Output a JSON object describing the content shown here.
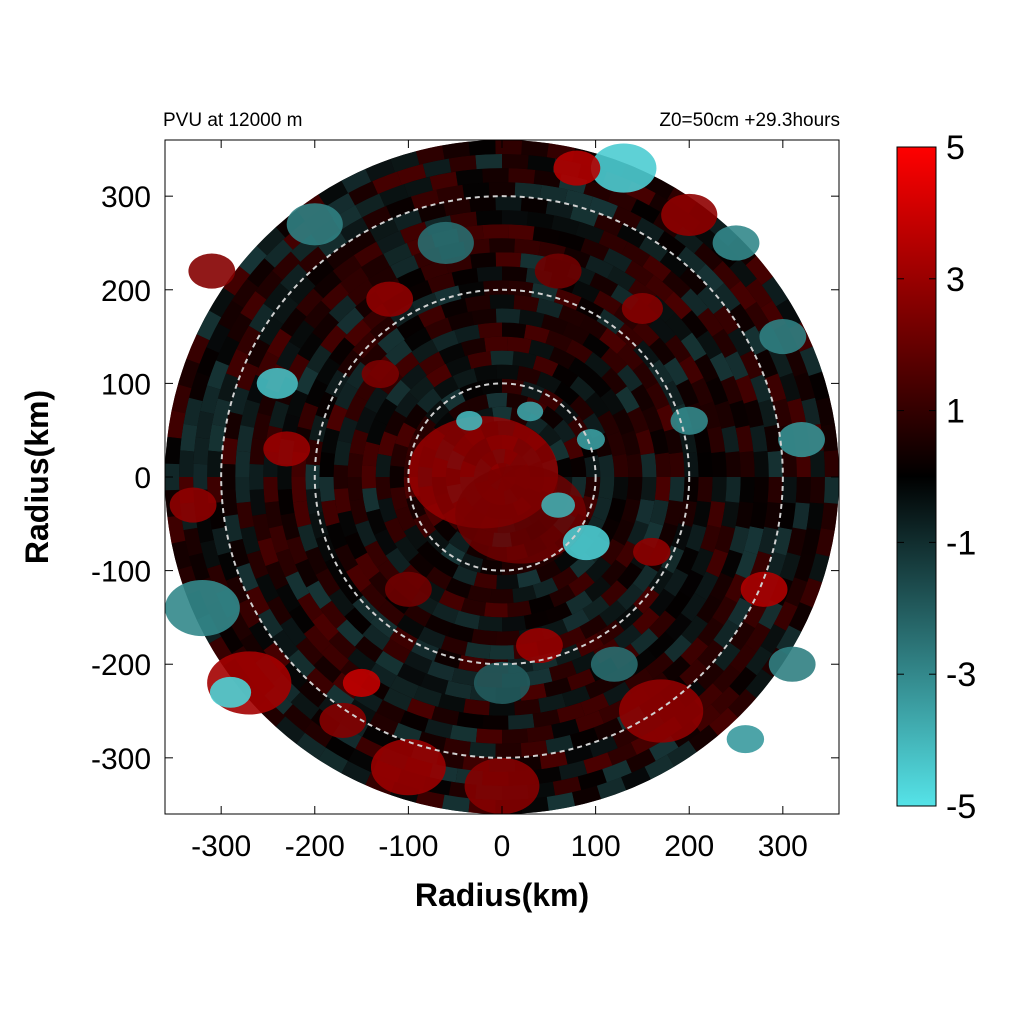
{
  "chart_data": {
    "type": "heatmap",
    "title_left": "PVU at 12000 m",
    "title_right": "Z0=50cm  +29.3hours",
    "xlabel": "Radius(km)",
    "ylabel": "Radius(km)",
    "xlim": [
      -360,
      360
    ],
    "ylim": [
      -360,
      360
    ],
    "xticks": [
      -300,
      -200,
      -100,
      0,
      100,
      200,
      300
    ],
    "yticks": [
      -300,
      -200,
      -100,
      0,
      100,
      200,
      300
    ],
    "xtick_labels": [
      "-300",
      "-200",
      "-100",
      "0",
      "100",
      "200",
      "300"
    ],
    "ytick_labels": [
      "300",
      "200",
      "100",
      "0",
      "-100",
      "-200",
      "-300"
    ],
    "domain_radius_km": 360,
    "reference_circles_km": [
      100,
      200,
      300
    ],
    "colorbar": {
      "min": -5,
      "max": 5,
      "tick_labels": [
        "5",
        "3",
        "1",
        "-1",
        "-3",
        "-5"
      ],
      "tick_values": [
        5,
        3,
        1,
        -1,
        -3,
        -5
      ],
      "colors": {
        "negative": "#55e3e8",
        "zero": "#000000",
        "positive": "#ff0000"
      }
    },
    "features": [
      {
        "type": "core",
        "cx": -20,
        "cy": 5,
        "r": 80,
        "value": 3.2
      },
      {
        "type": "core",
        "cx": 20,
        "cy": -40,
        "r": 70,
        "value": 2.4
      },
      {
        "type": "blob",
        "cx": 90,
        "cy": -70,
        "r": 25,
        "value": -4.5
      },
      {
        "type": "blob",
        "cx": 60,
        "cy": -30,
        "r": 18,
        "value": -3.8
      },
      {
        "type": "blob",
        "cx": 95,
        "cy": 40,
        "r": 15,
        "value": -3.5
      },
      {
        "type": "blob",
        "cx": -35,
        "cy": 60,
        "r": 14,
        "value": -4.0
      },
      {
        "type": "blob",
        "cx": 30,
        "cy": 70,
        "r": 14,
        "value": -3.6
      },
      {
        "type": "blob",
        "cx": 130,
        "cy": 330,
        "r": 35,
        "value": -4.5
      },
      {
        "type": "blob",
        "cx": 80,
        "cy": 330,
        "r": 25,
        "value": 3.5
      },
      {
        "type": "blob",
        "cx": 200,
        "cy": 280,
        "r": 30,
        "value": 2.8
      },
      {
        "type": "blob",
        "cx": 250,
        "cy": 250,
        "r": 25,
        "value": -3.0
      },
      {
        "type": "blob",
        "cx": -240,
        "cy": 100,
        "r": 22,
        "value": -4.2
      },
      {
        "type": "blob",
        "cx": -230,
        "cy": 30,
        "r": 25,
        "value": 3.0
      },
      {
        "type": "blob",
        "cx": -320,
        "cy": -140,
        "r": 40,
        "value": -3.0
      },
      {
        "type": "blob",
        "cx": -270,
        "cy": -220,
        "r": 45,
        "value": 3.2
      },
      {
        "type": "blob",
        "cx": -290,
        "cy": -230,
        "r": 22,
        "value": -4.6
      },
      {
        "type": "blob",
        "cx": -150,
        "cy": -220,
        "r": 20,
        "value": 3.8
      },
      {
        "type": "blob",
        "cx": -170,
        "cy": -260,
        "r": 25,
        "value": 2.6
      },
      {
        "type": "blob",
        "cx": -100,
        "cy": -310,
        "r": 40,
        "value": 3.0
      },
      {
        "type": "blob",
        "cx": 0,
        "cy": -330,
        "r": 40,
        "value": 2.6
      },
      {
        "type": "blob",
        "cx": 0,
        "cy": -220,
        "r": 30,
        "value": -2.0
      },
      {
        "type": "blob",
        "cx": 170,
        "cy": -250,
        "r": 45,
        "value": 2.8
      },
      {
        "type": "blob",
        "cx": 280,
        "cy": -120,
        "r": 25,
        "value": 3.4
      },
      {
        "type": "blob",
        "cx": 310,
        "cy": -200,
        "r": 25,
        "value": -2.8
      },
      {
        "type": "blob",
        "cx": 320,
        "cy": 40,
        "r": 25,
        "value": -3.2
      },
      {
        "type": "blob",
        "cx": 300,
        "cy": 150,
        "r": 25,
        "value": -2.8
      },
      {
        "type": "blob",
        "cx": -200,
        "cy": 270,
        "r": 30,
        "value": -2.8
      },
      {
        "type": "blob",
        "cx": -310,
        "cy": 220,
        "r": 25,
        "value": 2.6
      },
      {
        "type": "blob",
        "cx": -120,
        "cy": 190,
        "r": 25,
        "value": 2.8
      },
      {
        "type": "blob",
        "cx": 150,
        "cy": 180,
        "r": 22,
        "value": 2.6
      },
      {
        "type": "blob",
        "cx": 200,
        "cy": 60,
        "r": 20,
        "value": -3.0
      },
      {
        "type": "blob",
        "cx": 160,
        "cy": -80,
        "r": 20,
        "value": 2.8
      },
      {
        "type": "blob",
        "cx": 120,
        "cy": -200,
        "r": 25,
        "value": -2.4
      },
      {
        "type": "blob",
        "cx": -100,
        "cy": -120,
        "r": 25,
        "value": 2.2
      },
      {
        "type": "blob",
        "cx": 40,
        "cy": -180,
        "r": 25,
        "value": 3.0
      },
      {
        "type": "blob",
        "cx": -60,
        "cy": 250,
        "r": 30,
        "value": -2.4
      },
      {
        "type": "blob",
        "cx": 60,
        "cy": 220,
        "r": 25,
        "value": 2.2
      },
      {
        "type": "blob",
        "cx": 260,
        "cy": -280,
        "r": 20,
        "value": -3.4
      },
      {
        "type": "blob",
        "cx": -130,
        "cy": 110,
        "r": 20,
        "value": 2.4
      },
      {
        "type": "blob",
        "cx": -330,
        "cy": -30,
        "r": 25,
        "value": 2.8
      }
    ]
  }
}
